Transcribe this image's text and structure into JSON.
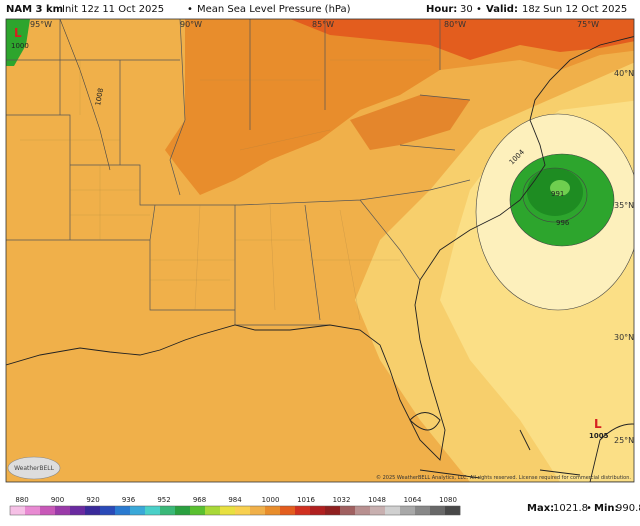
{
  "header": {
    "model": "NAM 3 km",
    "init": "Init 12z 11 Oct 2025",
    "separator": "•",
    "field": "Mean Sea Level Pressure (hPa)",
    "hour_label": "Hour:",
    "hour": "30",
    "valid_label": "Valid:",
    "valid": "18z Sun 12 Oct 2025"
  },
  "map": {
    "longitudes": [
      "95°W",
      "90°W",
      "85°W",
      "80°W",
      "75°W"
    ],
    "latitudes": [
      "40°N",
      "35°N",
      "30°N",
      "25°N"
    ],
    "contour_labels": [
      "1000",
      "1008",
      "1004",
      "991",
      "996",
      "1005"
    ],
    "low_marker": "L",
    "copyright": "© 2025 WeatherBELL Analytics, LLC. All rights reserved. License required for commercial distribution.",
    "logo": "WeatherBELL"
  },
  "colorbar": {
    "ticks": [
      880,
      900,
      920,
      936,
      952,
      968,
      984,
      1000,
      1016,
      1032,
      1048,
      1064,
      1080
    ]
  },
  "footer": {
    "max_label": "Max:",
    "max": 1021.8,
    "separator": "•",
    "min_label": "Min:",
    "min": 990.8
  }
}
